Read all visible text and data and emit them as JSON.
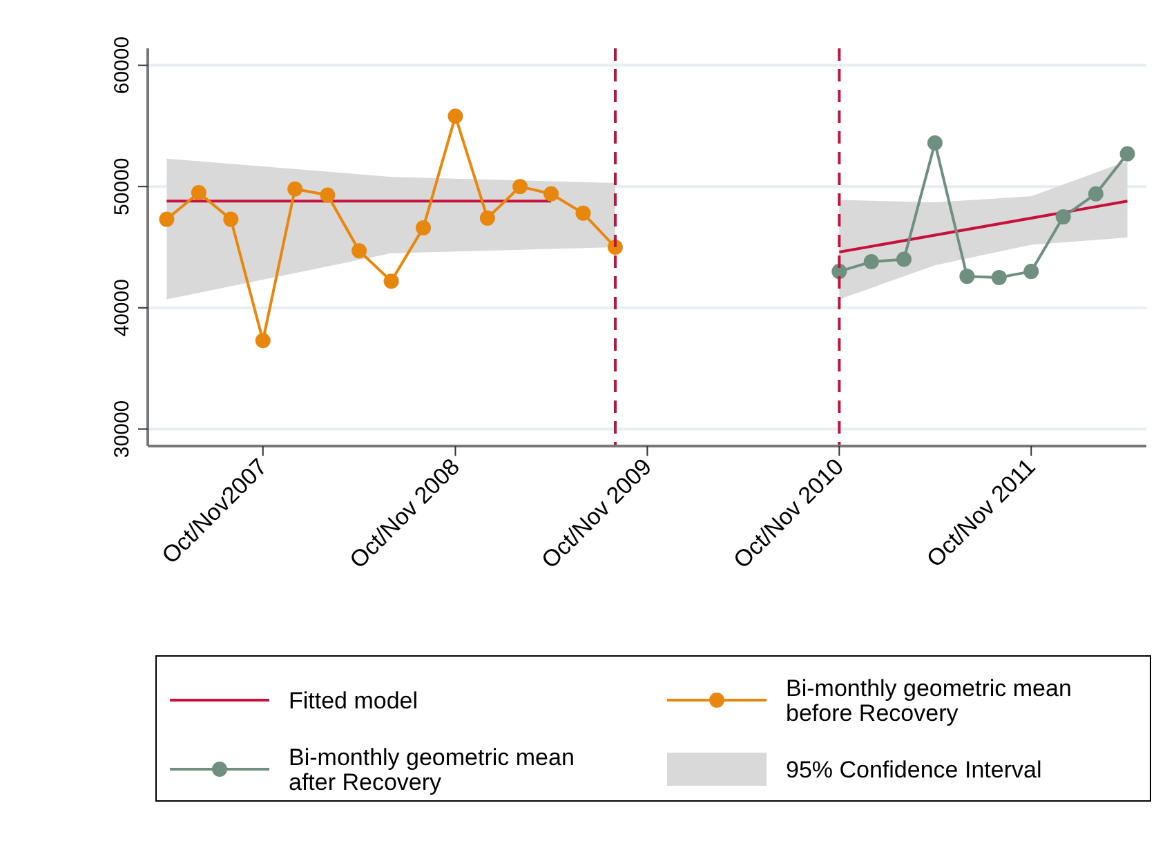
{
  "chart_data": {
    "type": "line",
    "xlim": [
      "2007-02-24",
      "2012-05-07"
    ],
    "xticks": [
      {
        "value": "2007-10",
        "label": "Oct/Nov2007"
      },
      {
        "value": "2008-10",
        "label": "Oct/Nov 2008"
      },
      {
        "value": "2009-10",
        "label": "Oct/Nov 2009"
      },
      {
        "value": "2010-10",
        "label": "Oct/Nov 2010"
      },
      {
        "value": "2011-10",
        "label": "Oct/Nov 2011"
      }
    ],
    "ylim": [
      28600,
      61400
    ],
    "yticks": [
      30000,
      40000,
      50000,
      60000
    ],
    "grid": "y",
    "legend": "bottom",
    "marker": "circle",
    "ref_lines": [
      {
        "axis": "x",
        "value": "2009-08",
        "color": "#c8103c",
        "line_style": "dashed"
      },
      {
        "axis": "x",
        "value": "2010-10",
        "color": "#c8103c",
        "line_style": "dashed"
      }
    ],
    "series": [
      {
        "name": "Fitted model",
        "type": "line",
        "marker": "none",
        "color": "#c8103c",
        "x": [
          "2007-04",
          "2008-04",
          "2009-04",
          "2010-02",
          "2010-10",
          "2012-04"
        ],
        "values": [
          48800,
          48800,
          48800,
          null,
          44600,
          48800
        ]
      },
      {
        "name": "Bi-monthly geometric mean before Recovery",
        "color": "#e8870e",
        "x": [
          "2007-04",
          "2007-06",
          "2007-08",
          "2007-10",
          "2007-12",
          "2008-02",
          "2008-04",
          "2008-06",
          "2008-08",
          "2008-10",
          "2008-12",
          "2009-02",
          "2009-04",
          "2009-06",
          "2009-08"
        ],
        "values": [
          47300,
          49500,
          47300,
          37300,
          49800,
          49300,
          44700,
          42200,
          46600,
          55800,
          47400,
          50000,
          49400,
          47800,
          45000
        ]
      },
      {
        "name": "Bi-monthly geometric mean after Recovery",
        "color": "#6f8f80",
        "x": [
          "2010-10",
          "2010-12",
          "2011-02",
          "2011-04",
          "2011-06",
          "2011-08",
          "2011-10",
          "2011-12",
          "2012-02",
          "2012-04"
        ],
        "values": [
          43000,
          43800,
          44000,
          53600,
          42600,
          42500,
          43000,
          47500,
          49400,
          52700
        ]
      },
      {
        "name": "95% Confidence Interval",
        "type": "area",
        "color": "#d9d9d9",
        "x": [
          "2007-04",
          "2008-06",
          "2009-08",
          "2010-02",
          "2010-10",
          "2011-04",
          "2011-10",
          "2012-04"
        ],
        "values": [
          null,
          null,
          null,
          null,
          null,
          null,
          null,
          null
        ],
        "lower": [
          40700,
          44500,
          45000,
          null,
          40700,
          43500,
          45200,
          45800
        ],
        "upper": [
          52300,
          50800,
          50300,
          null,
          48900,
          48700,
          49200,
          52100
        ]
      }
    ]
  }
}
